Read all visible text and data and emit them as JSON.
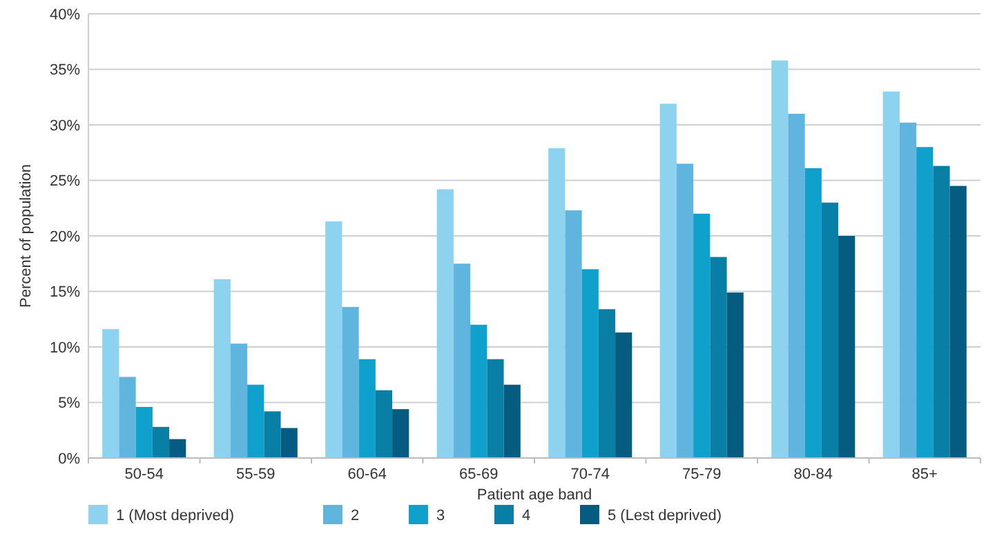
{
  "chart_data": {
    "type": "bar",
    "xlabel": "Patient age band",
    "ylabel": "Percent of population",
    "categories": [
      "50-54",
      "55-59",
      "60-64",
      "65-69",
      "70-74",
      "75-79",
      "80-84",
      "85+"
    ],
    "series": [
      {
        "name": "1 (Most deprived)",
        "color": "#8dd3f0",
        "values": [
          11.6,
          16.1,
          21.3,
          24.2,
          27.9,
          31.9,
          35.8,
          33.0
        ]
      },
      {
        "name": "2",
        "color": "#5fb5dd",
        "values": [
          7.3,
          10.3,
          13.6,
          17.5,
          22.3,
          26.5,
          31.0,
          30.2
        ]
      },
      {
        "name": "3",
        "color": "#0fa0cc",
        "values": [
          4.6,
          6.6,
          8.9,
          12.0,
          17.0,
          22.0,
          26.1,
          28.0
        ]
      },
      {
        "name": "4",
        "color": "#0a7fa5",
        "values": [
          2.8,
          4.2,
          6.1,
          8.9,
          13.4,
          18.1,
          23.0,
          26.3
        ]
      },
      {
        "name": "5 (Lest deprived)",
        "color": "#055c80",
        "values": [
          1.7,
          2.7,
          4.4,
          6.6,
          11.3,
          14.9,
          20.0,
          24.5
        ]
      }
    ],
    "ylim": [
      0,
      40
    ],
    "yticks": [
      {
        "value": 0,
        "label": "0%"
      },
      {
        "value": 5,
        "label": "5%"
      },
      {
        "value": 10,
        "label": "10%"
      },
      {
        "value": 15,
        "label": "15%"
      },
      {
        "value": 20,
        "label": "20%"
      },
      {
        "value": 25,
        "label": "25%"
      },
      {
        "value": 30,
        "label": "30%"
      },
      {
        "value": 35,
        "label": "35%"
      },
      {
        "value": 40,
        "label": "40%"
      }
    ],
    "grid": "y",
    "legend": "bottom left"
  }
}
